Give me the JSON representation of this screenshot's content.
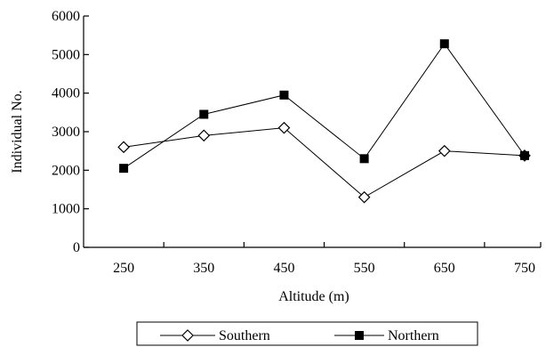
{
  "chart_data": {
    "type": "line",
    "title": "",
    "xlabel": "Altitude (m)",
    "ylabel": "Individual No.",
    "categories": [
      "250",
      "350",
      "450",
      "550",
      "650",
      "750"
    ],
    "x": [
      250,
      350,
      450,
      550,
      650,
      750
    ],
    "ylim": [
      0,
      6000
    ],
    "yticks": [
      "0",
      "1000",
      "2000",
      "3000",
      "4000",
      "5000",
      "6000"
    ],
    "grid": false,
    "legend_position": "bottom-center",
    "series": [
      {
        "name": "Southern",
        "marker": "open-diamond",
        "color": "#000000",
        "values": [
          2600,
          2900,
          3100,
          1300,
          2500,
          2380
        ]
      },
      {
        "name": "Northern",
        "marker": "filled-square",
        "color": "#000000",
        "values": [
          2050,
          3450,
          3950,
          2300,
          5280,
          2380
        ]
      }
    ]
  }
}
